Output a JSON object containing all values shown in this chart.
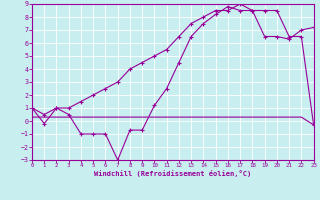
{
  "xlabel": "Windchill (Refroidissement éolien,°C)",
  "background_color": "#c8eef0",
  "line_color": "#990099",
  "grid_color": "#ffffff",
  "xlim": [
    0,
    23
  ],
  "ylim": [
    -3,
    9
  ],
  "xticks": [
    0,
    1,
    2,
    3,
    4,
    5,
    6,
    7,
    8,
    9,
    10,
    11,
    12,
    13,
    14,
    15,
    16,
    17,
    18,
    19,
    20,
    21,
    22,
    23
  ],
  "yticks": [
    -3,
    -2,
    -1,
    0,
    1,
    2,
    3,
    4,
    5,
    6,
    7,
    8,
    9
  ],
  "line1_x": [
    0,
    1,
    2,
    3,
    4,
    5,
    6,
    7,
    8,
    9,
    10,
    11,
    12,
    13,
    14,
    15,
    16,
    17,
    18,
    19,
    20,
    21,
    22,
    23
  ],
  "line1_y": [
    1,
    -0.2,
    1,
    0.5,
    -1,
    -1,
    -1,
    -3,
    -0.7,
    -0.7,
    1.2,
    2.5,
    4.5,
    6.5,
    7.5,
    8.2,
    8.8,
    8.5,
    8.5,
    6.5,
    6.5,
    6.3,
    7.0,
    7.2
  ],
  "line2_x": [
    0,
    1,
    2,
    3,
    4,
    5,
    6,
    7,
    8,
    9,
    10,
    11,
    12,
    13,
    14,
    15,
    16,
    17,
    18,
    19,
    20,
    21,
    22,
    23
  ],
  "line2_y": [
    0.3,
    0.3,
    0.3,
    0.3,
    0.3,
    0.3,
    0.3,
    0.3,
    0.3,
    0.3,
    0.3,
    0.3,
    0.3,
    0.3,
    0.3,
    0.3,
    0.3,
    0.3,
    0.3,
    0.3,
    0.3,
    0.3,
    0.3,
    -0.3
  ],
  "line3_x": [
    0,
    1,
    2,
    3,
    4,
    5,
    6,
    7,
    8,
    9,
    10,
    11,
    12,
    13,
    14,
    15,
    16,
    17,
    18,
    19,
    20,
    21,
    22,
    23
  ],
  "line3_y": [
    1,
    0.5,
    1,
    1,
    1.5,
    2,
    2.5,
    3,
    4,
    4.5,
    5,
    5.5,
    6.5,
    7.5,
    8.0,
    8.5,
    8.5,
    9.0,
    8.5,
    8.5,
    8.5,
    6.5,
    6.5,
    -0.3
  ]
}
